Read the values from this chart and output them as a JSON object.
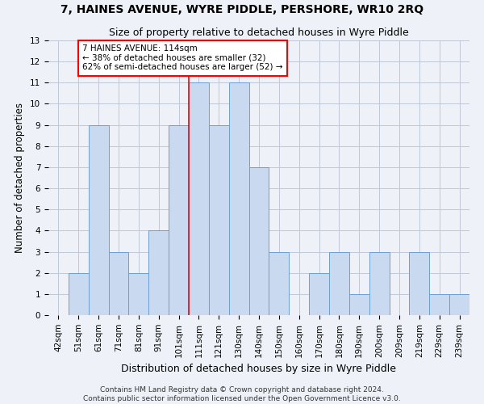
{
  "title": "7, HAINES AVENUE, WYRE PIDDLE, PERSHORE, WR10 2RQ",
  "subtitle": "Size of property relative to detached houses in Wyre Piddle",
  "xlabel": "Distribution of detached houses by size in Wyre Piddle",
  "ylabel": "Number of detached properties",
  "categories": [
    "42sqm",
    "51sqm",
    "61sqm",
    "71sqm",
    "81sqm",
    "91sqm",
    "101sqm",
    "111sqm",
    "121sqm",
    "130sqm",
    "140sqm",
    "150sqm",
    "160sqm",
    "170sqm",
    "180sqm",
    "190sqm",
    "200sqm",
    "209sqm",
    "219sqm",
    "229sqm",
    "239sqm"
  ],
  "values": [
    0,
    2,
    9,
    3,
    2,
    4,
    9,
    11,
    9,
    11,
    7,
    3,
    0,
    2,
    3,
    1,
    3,
    0,
    3,
    1,
    1
  ],
  "bar_color": "#c9d9f0",
  "bar_edge_color": "#6b9fd4",
  "grid_color": "#c0c8d8",
  "background_color": "#eef2f8",
  "vline_x_index": 7,
  "vline_color": "red",
  "annotation_text": "7 HAINES AVENUE: 114sqm\n← 38% of detached houses are smaller (32)\n62% of semi-detached houses are larger (52) →",
  "annotation_box_color": "white",
  "annotation_border_color": "red",
  "ylim": [
    0,
    13
  ],
  "yticks": [
    0,
    1,
    2,
    3,
    4,
    5,
    6,
    7,
    8,
    9,
    10,
    11,
    12,
    13
  ],
  "footnote": "Contains HM Land Registry data © Crown copyright and database right 2024.\nContains public sector information licensed under the Open Government Licence v3.0.",
  "title_fontsize": 10,
  "subtitle_fontsize": 9,
  "xlabel_fontsize": 9,
  "ylabel_fontsize": 8.5,
  "tick_fontsize": 7.5,
  "annotation_fontsize": 7.5,
  "footnote_fontsize": 6.5
}
